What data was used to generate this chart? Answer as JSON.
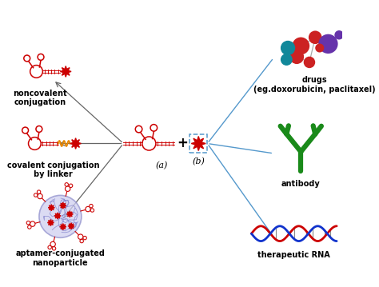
{
  "bg_color": "#ffffff",
  "red": "#cc0000",
  "pink": "#e8a0a0",
  "orange": "#e88800",
  "green": "#1a8a1a",
  "blue_line": "#5599cc",
  "arrow_color": "#666666",
  "labels": {
    "noncovalent": "noncovalent\nconjugation",
    "covalent": "covalent conjugation\nby linker",
    "nanoparticle": "aptamer-conjugated\nnanoparticle",
    "drugs": "drugs\n(eg.doxorubicin, paclitaxel)",
    "antibody": "antibody",
    "rna": "therapeutic RNA",
    "a_label": "(a)",
    "b_label": "(b)"
  },
  "figsize": [
    4.74,
    3.59
  ],
  "dpi": 100,
  "xlim": [
    0,
    10
  ],
  "ylim": [
    0,
    7.58
  ]
}
